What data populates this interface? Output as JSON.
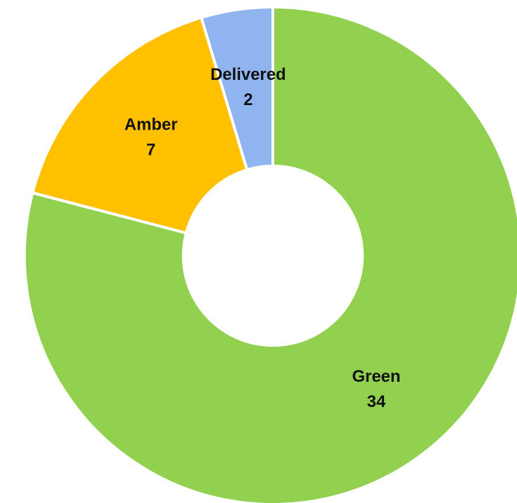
{
  "chart_data": {
    "type": "donut",
    "categories": [
      "Green",
      "Amber",
      "Delivered"
    ],
    "values": [
      34,
      7,
      2
    ],
    "colors": [
      "#92d050",
      "#ffc000",
      "#8fb4f0"
    ]
  }
}
